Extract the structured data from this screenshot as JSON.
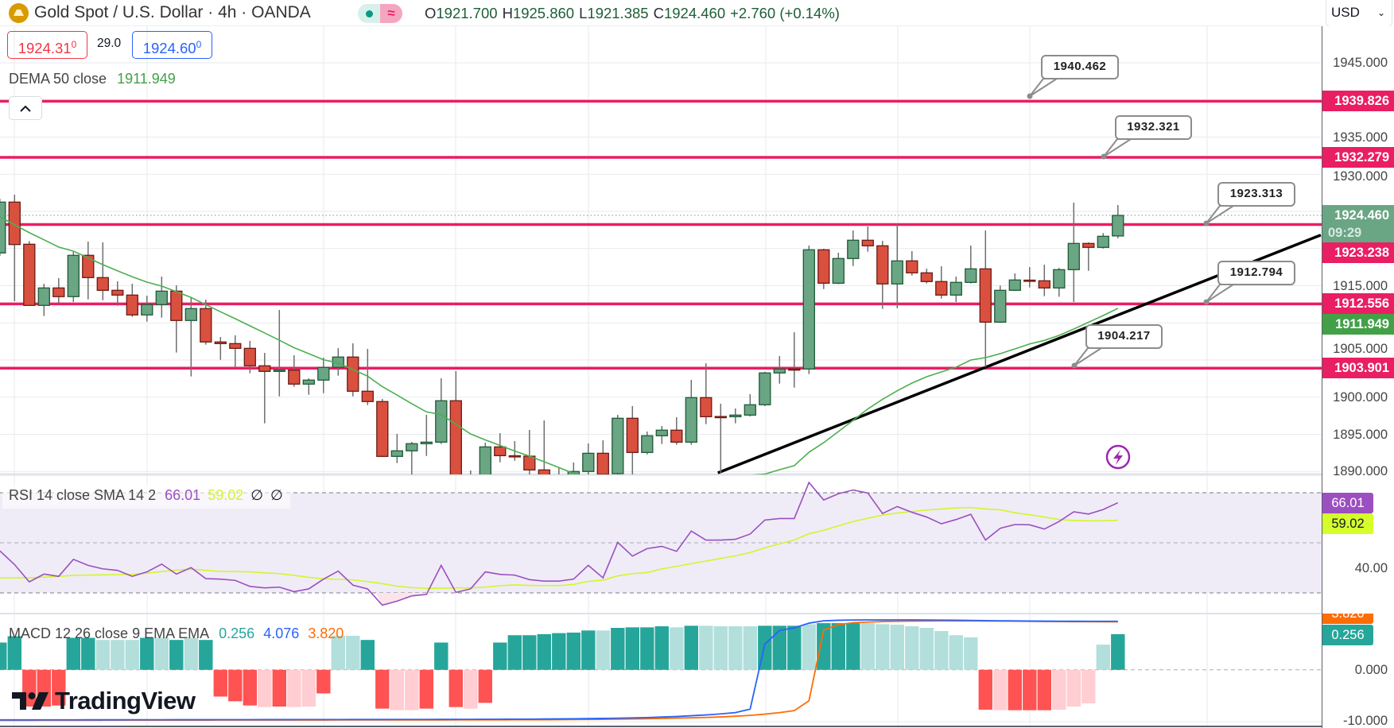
{
  "header": {
    "title": "Gold Spot / U.S. Dollar · 4h · OANDA",
    "symbol_icon": "gold-bars-icon",
    "status_icons": [
      "market-open-dot-icon",
      "data-delay-icon"
    ],
    "data_delay_glyph": "≈",
    "ohlc": {
      "o_label": "O",
      "open": "1921.700",
      "h_label": "H",
      "high": "1925.860",
      "l_label": "L",
      "low": "1921.385",
      "c_label": "C",
      "close": "1924.460",
      "change": "+2.760 (+0.14%)"
    },
    "currency": "USD",
    "currency_chevron": "⌄"
  },
  "trade": {
    "sell_price": "1924.31",
    "sell_sup": "0",
    "spread": "29.0",
    "buy_price": "1924.60",
    "buy_sup": "0"
  },
  "indicators": {
    "dema": {
      "label": "DEMA 50 close",
      "value": "1911.949",
      "color": "#43a047"
    },
    "collapse_glyph": "⌃",
    "rsi": {
      "label": "RSI 14 close SMA 14 2",
      "value": "66.01",
      "sma_value": "59.02",
      "extra1": "∅",
      "extra2": "∅",
      "color": "#9c4fc0",
      "sma_color": "#c8f51e"
    },
    "macd": {
      "label": "MACD 12 26 close 9 EMA EMA",
      "hist_value": "0.256",
      "macd_value": "4.076",
      "signal_value": "3.820",
      "hist_color": "#26a69a",
      "macd_color": "#2962ff",
      "signal_color": "#ff6d00"
    }
  },
  "price_axis": {
    "ticks": [
      "1945.000",
      "1935.000",
      "1930.000",
      "1915.000",
      "1905.000",
      "1900.000",
      "1895.000",
      "1890.000"
    ],
    "tick_values": [
      1945,
      1935,
      1930,
      1915,
      1905,
      1900,
      1895,
      1890
    ],
    "labels": [
      {
        "text": "1939.826",
        "price": 1939.826,
        "bg": "#e91e63"
      },
      {
        "text": "1932.279",
        "price": 1932.279,
        "bg": "#e91e63"
      },
      {
        "text": "1924.460",
        "sub": "09:29",
        "price": 1924.46,
        "bg": "#6aa584"
      },
      {
        "text": "1923.238",
        "price": 1923.238,
        "bg": "#e91e63"
      },
      {
        "text": "1912.556",
        "price": 1912.556,
        "bg": "#e91e63"
      },
      {
        "text": "1911.949",
        "price": 1911.949,
        "bg": "#43a047"
      },
      {
        "text": "1903.901",
        "price": 1903.901,
        "bg": "#e91e63"
      }
    ]
  },
  "rsi_axis": {
    "ticks": [
      "40.00"
    ],
    "tick_values": [
      40
    ],
    "labels": [
      {
        "text": "66.01",
        "value": 66.01,
        "bg": "#9c4fc0",
        "fg": "#ffffff"
      },
      {
        "text": "59.02",
        "value": 59.02,
        "bg": "#d4ff2a",
        "fg": "#131722"
      }
    ]
  },
  "macd_axis": {
    "ticks": [
      "0.000",
      "-10.000"
    ],
    "tick_values": [
      0,
      -10
    ],
    "labels": [
      {
        "text": "3.820",
        "bg": "#ff6d00",
        "fg": "#ffffff"
      },
      {
        "text": "0.256",
        "bg": "#26a69a",
        "fg": "#ffffff"
      }
    ]
  },
  "drawings": {
    "hlines": [
      1939.826,
      1932.279,
      1923.238,
      1912.556,
      1903.901
    ],
    "hline_color": "#e91e63",
    "callouts": [
      {
        "text": "1940.462"
      },
      {
        "text": "1932.321"
      },
      {
        "text": "1923.313"
      },
      {
        "text": "1912.794"
      },
      {
        "text": "1904.217"
      }
    ],
    "alert_icon": "lightning-icon"
  },
  "branding": {
    "logo_text": "TradingView"
  },
  "chart_data": {
    "type": "candlestick",
    "price_range": [
      1888,
      1948
    ],
    "last_price": 1924.46,
    "candles": [
      [
        1919.41,
        1926.71,
        1919.01,
        1926.25
      ],
      [
        1926.25,
        1927.25,
        1912.92,
        1920.54
      ],
      [
        1920.58,
        1921.01,
        1912.3,
        1912.35
      ],
      [
        1912.35,
        1915.27,
        1910.92,
        1914.7
      ],
      [
        1914.7,
        1916.02,
        1912.7,
        1913.53
      ],
      [
        1913.53,
        1919.55,
        1912.81,
        1919.09
      ],
      [
        1919.09,
        1920.94,
        1913.16,
        1916.09
      ],
      [
        1916.09,
        1920.83,
        1913.05,
        1914.38
      ],
      [
        1914.38,
        1915.59,
        1912.31,
        1913.74
      ],
      [
        1913.74,
        1915.27,
        1910.81,
        1911.07
      ],
      [
        1911.07,
        1913.66,
        1910.17,
        1912.46
      ],
      [
        1912.46,
        1916.23,
        1910.7,
        1914.27
      ],
      [
        1914.27,
        1915.05,
        1906.0,
        1910.32
      ],
      [
        1910.32,
        1913.45,
        1902.79,
        1911.92
      ],
      [
        1911.92,
        1913.13,
        1907.07,
        1907.43
      ],
      [
        1907.43,
        1908.1,
        1905.03,
        1907.21
      ],
      [
        1907.21,
        1908.32,
        1903.86,
        1906.57
      ],
      [
        1906.57,
        1907.57,
        1903.22,
        1904.22
      ],
      [
        1904.22,
        1905.96,
        1896.48,
        1903.47
      ],
      [
        1903.47,
        1911.74,
        1900.11,
        1903.64
      ],
      [
        1903.64,
        1905.64,
        1901.4,
        1901.76
      ],
      [
        1901.76,
        1902.54,
        1900.33,
        1902.3
      ],
      [
        1902.3,
        1905.32,
        1900.54,
        1904.01
      ],
      [
        1904.01,
        1906.6,
        1902.89,
        1905.4
      ],
      [
        1905.4,
        1907.25,
        1900.11,
        1900.8
      ],
      [
        1900.8,
        1906.5,
        1898.94,
        1899.41
      ],
      [
        1899.41,
        1899.76,
        1891.95,
        1892.03
      ],
      [
        1892.03,
        1895.06,
        1891.13,
        1892.78
      ],
      [
        1892.78,
        1893.98,
        1889.28,
        1893.74
      ],
      [
        1893.74,
        1897.62,
        1892.09,
        1893.95
      ],
      [
        1893.95,
        1902.54,
        1893.7,
        1899.52
      ],
      [
        1899.52,
        1903.5,
        1886.8,
        1887.5
      ],
      [
        1889.0,
        1890.14,
        1887.2,
        1888.0
      ],
      [
        1888.5,
        1893.88,
        1887.9,
        1893.31
      ],
      [
        1893.31,
        1895.16,
        1891.24,
        1892.13
      ],
      [
        1892.12,
        1894.09,
        1891.45,
        1892.08
      ],
      [
        1892.06,
        1895.59,
        1889.0,
        1890.21
      ],
      [
        1890.21,
        1896.87,
        1887.8,
        1888.5
      ],
      [
        1888.3,
        1890.45,
        1887.6,
        1889.0
      ],
      [
        1888.9,
        1891.21,
        1888.2,
        1890.0
      ],
      [
        1890.0,
        1893.77,
        1889.3,
        1892.45
      ],
      [
        1892.45,
        1894.2,
        1889.0,
        1889.6
      ],
      [
        1889.71,
        1897.62,
        1889.3,
        1897.16
      ],
      [
        1897.16,
        1898.8,
        1889.5,
        1892.56
      ],
      [
        1892.56,
        1895.38,
        1892.3,
        1894.81
      ],
      [
        1894.81,
        1896.12,
        1893.7,
        1895.56
      ],
      [
        1895.56,
        1897.3,
        1893.6,
        1893.95
      ],
      [
        1893.95,
        1902.33,
        1893.6,
        1899.94
      ],
      [
        1899.94,
        1904.57,
        1896.37,
        1897.37
      ],
      [
        1897.4,
        1899.12,
        1889.81,
        1897.37
      ],
      [
        1897.37,
        1898.48,
        1896.48,
        1897.59
      ],
      [
        1897.59,
        1900.4,
        1897.4,
        1898.98
      ],
      [
        1898.98,
        1903.4,
        1898.8,
        1903.26
      ],
      [
        1903.26,
        1905.53,
        1901.82,
        1903.79
      ],
      [
        1903.8,
        1908.74,
        1901.29,
        1903.79
      ],
      [
        1903.79,
        1920.4,
        1903.11,
        1919.83
      ],
      [
        1919.83,
        1919.97,
        1914.55,
        1915.34
      ],
      [
        1915.34,
        1919.44,
        1915.2,
        1918.66
      ],
      [
        1918.66,
        1922.43,
        1917.65,
        1921.12
      ],
      [
        1921.12,
        1922.97,
        1919.58,
        1920.37
      ],
      [
        1920.37,
        1921.04,
        1911.88,
        1915.24
      ],
      [
        1915.24,
        1923.4,
        1911.98,
        1918.34
      ],
      [
        1918.34,
        1919.65,
        1916.37,
        1916.73
      ],
      [
        1916.73,
        1917.3,
        1915.3,
        1915.56
      ],
      [
        1915.56,
        1917.62,
        1913.27,
        1913.74
      ],
      [
        1913.74,
        1916.23,
        1912.81,
        1915.45
      ],
      [
        1915.45,
        1920.4,
        1915.3,
        1917.27
      ],
      [
        1917.27,
        1922.43,
        1904.04,
        1910.1
      ],
      [
        1910.1,
        1915.02,
        1910.0,
        1914.38
      ],
      [
        1914.38,
        1916.66,
        1914.3,
        1915.77
      ],
      [
        1915.75,
        1917.51,
        1914.76,
        1915.73
      ],
      [
        1915.66,
        1917.83,
        1913.59,
        1914.7
      ],
      [
        1914.7,
        1917.41,
        1913.52,
        1917.16
      ],
      [
        1917.16,
        1926.18,
        1912.81,
        1920.69
      ],
      [
        1920.69,
        1920.83,
        1917.01,
        1920.16
      ],
      [
        1920.16,
        1922.08,
        1920.0,
        1921.65
      ],
      [
        1921.7,
        1925.86,
        1921.385,
        1924.46
      ]
    ],
    "dema": [
      1924.28,
      1923.21,
      1922.14,
      1921.18,
      1920.2,
      1919.65,
      1918.74,
      1917.83,
      1917.0,
      1916.2,
      1915.48,
      1914.95,
      1914.2,
      1913.42,
      1912.45,
      1911.49,
      1910.56,
      1909.6,
      1908.64,
      1907.67,
      1906.66,
      1905.86,
      1905.04,
      1904.6,
      1903.72,
      1902.83,
      1901.42,
      1900.29,
      1899.12,
      1898.02,
      1897.66,
      1896.34,
      1895.05,
      1894.25,
      1893.5,
      1892.75,
      1892.06,
      1891.31,
      1890.53,
      1889.74,
      1889.28,
      1888.85,
      1888.64,
      1888.53,
      1888.53,
      1888.64,
      1888.74,
      1888.85,
      1888.96,
      1889.17,
      1889.28,
      1889.49,
      1889.65,
      1890.24,
      1890.78,
      1892.59,
      1893.88,
      1895.37,
      1896.87,
      1898.42,
      1899.71,
      1900.86,
      1901.9,
      1902.75,
      1903.4,
      1904.04,
      1905.0,
      1905.32,
      1905.86,
      1906.5,
      1907.17,
      1907.64,
      1908.32,
      1909.17,
      1910.08,
      1910.99,
      1911.949
    ],
    "rsi": {
      "range": [
        22,
        78
      ],
      "bands": [
        70,
        50,
        30
      ],
      "values": [
        46.8,
        41.3,
        34.4,
        37.5,
        36.6,
        43.4,
        41.0,
        39.6,
        39.0,
        36.6,
        38.4,
        41.5,
        37.5,
        40.1,
        35.7,
        35.5,
        35.0,
        32.6,
        32.0,
        32.3,
        30.5,
        31.6,
        35.5,
        38.7,
        33.1,
        31.6,
        25.1,
        26.7,
        28.8,
        29.4,
        41.0,
        30.2,
        31.6,
        38.4,
        37.4,
        37.1,
        35.3,
        34.7,
        34.7,
        35.5,
        41.0,
        36.0,
        50.2,
        44.7,
        47.7,
        48.6,
        46.6,
        54.7,
        51.1,
        51.1,
        51.4,
        53.5,
        59.1,
        59.7,
        59.7,
        74.1,
        67.1,
        69.6,
        71.1,
        69.9,
        61.7,
        64.5,
        62.2,
        60.3,
        57.6,
        59.3,
        61.4,
        51.1,
        55.8,
        57.3,
        57.2,
        55.5,
        58.5,
        62.4,
        61.5,
        63.3,
        66.01
      ],
      "sma": [
        36.0,
        36.0,
        36.0,
        36.3,
        36.6,
        37.0,
        37.1,
        37.2,
        37.3,
        37.4,
        37.9,
        38.5,
        39.1,
        39.5,
        39.0,
        38.6,
        38.5,
        38.4,
        38.0,
        37.7,
        37.0,
        36.2,
        35.6,
        35.4,
        35.2,
        34.5,
        33.7,
        32.7,
        32.1,
        31.8,
        31.9,
        32.0,
        32.0,
        32.3,
        32.9,
        33.2,
        33.0,
        32.9,
        32.9,
        33.4,
        34.6,
        35.1,
        36.8,
        37.7,
        38.1,
        39.6,
        40.6,
        41.7,
        42.7,
        43.8,
        44.8,
        46.1,
        48.0,
        49.6,
        51.1,
        53.6,
        55.0,
        56.8,
        58.5,
        59.8,
        61.1,
        61.9,
        62.5,
        63.1,
        63.5,
        63.9,
        64.1,
        63.5,
        63.2,
        62.0,
        61.2,
        60.3,
        59.3,
        58.9,
        58.8,
        58.8,
        59.02
      ]
    },
    "macd": {
      "histogram": [
        5.2,
        6.4,
        -7.0,
        -7.0,
        -6.8,
        6.1,
        6.1,
        5.7,
        5.7,
        5.7,
        6.1,
        6.1,
        5.7,
        6.1,
        5.7,
        -5.1,
        -6.0,
        -6.8,
        -7.1,
        -7.0,
        -7.1,
        -7.0,
        -4.5,
        6.5,
        6.5,
        5.7,
        -7.4,
        -7.7,
        -7.7,
        -7.4,
        5.2,
        -7.1,
        -7.4,
        -6.3,
        5.2,
        6.6,
        6.6,
        6.8,
        7.0,
        7.1,
        7.5,
        7.5,
        8.0,
        8.1,
        8.1,
        8.3,
        8.1,
        8.4,
        8.4,
        8.3,
        8.3,
        8.3,
        8.4,
        8.4,
        8.4,
        8.7,
        8.9,
        8.9,
        8.9,
        8.9,
        8.7,
        8.6,
        8.3,
        8.0,
        7.4,
        6.6,
        6.2,
        -7.6,
        -7.7,
        -7.7,
        -7.7,
        -7.7,
        -7.6,
        -7.0,
        -6.4,
        4.8,
        6.8
      ],
      "histogram_shade": "dddddddllldldlddddldlldllddlldddlddddddd",
      "histogram_shade_2": "dlddddldlllldddldddlllllllldldd dlllldd",
      "macd": [
        -9.55,
        -9.55,
        -9.55,
        -9.54,
        -9.54,
        -9.54,
        -9.53,
        -9.53,
        -9.53,
        -9.52,
        -9.52,
        -9.52,
        -9.51,
        -9.51,
        -9.51,
        -9.5,
        -9.5,
        -9.5,
        -9.49,
        -9.49,
        -9.49,
        -9.48,
        -9.48,
        -9.48,
        -9.47,
        -9.47,
        -9.47,
        -9.46,
        -9.46,
        -9.46,
        -9.45,
        -9.45,
        -9.44,
        -9.43,
        -9.42,
        -9.41,
        -9.4,
        -9.38,
        -9.36,
        -9.33,
        -9.3,
        -9.26,
        -9.22,
        -9.17,
        -9.1,
        -9.0,
        -8.9,
        -8.75,
        -8.6,
        -8.4,
        -8.15,
        -7.5,
        4.9,
        7.5,
        8.0,
        8.9,
        9.35,
        9.45,
        9.5,
        9.52,
        9.52,
        9.52,
        9.52,
        9.5,
        9.48,
        9.45,
        9.42,
        9.38,
        9.35,
        9.33,
        9.3,
        9.28,
        9.27,
        9.26,
        9.25,
        9.25,
        9.25
      ],
      "signal": [
        -9.62,
        -9.62,
        -9.62,
        -9.61,
        -9.61,
        -9.61,
        -9.61,
        -9.6,
        -9.6,
        -9.6,
        -9.6,
        -9.59,
        -9.59,
        -9.59,
        -9.59,
        -9.58,
        -9.58,
        -9.58,
        -9.58,
        -9.57,
        -9.57,
        -9.57,
        -9.57,
        -9.56,
        -9.56,
        -9.56,
        -9.56,
        -9.55,
        -9.55,
        -9.55,
        -9.55,
        -9.54,
        -9.54,
        -9.53,
        -9.53,
        -9.52,
        -9.52,
        -9.51,
        -9.5,
        -9.48,
        -9.46,
        -9.43,
        -9.4,
        -9.36,
        -9.32,
        -9.27,
        -9.21,
        -9.15,
        -9.08,
        -8.98,
        -8.85,
        -8.68,
        -8.45,
        -8.15,
        -7.78,
        -5.9,
        7.6,
        8.6,
        8.98,
        9.1,
        9.2,
        9.25,
        9.3,
        9.32,
        9.33,
        9.33,
        9.33,
        9.32,
        9.3,
        9.28,
        9.25,
        9.22,
        9.2,
        9.18,
        9.17,
        9.16,
        9.15
      ]
    },
    "colors": {
      "up": "#6aa584",
      "down": "#d9503f",
      "dema": "#4caf50",
      "rsi": "#9c4fc0",
      "rsi_sma": "#d4f52a",
      "hist_up": "#26a69a",
      "hist_up_light": "#b2dfdb",
      "hist_down": "#ff5252",
      "hist_down_light": "#ffcdd2",
      "macd": "#2962ff",
      "signal": "#ff6d00"
    },
    "grid": true
  }
}
